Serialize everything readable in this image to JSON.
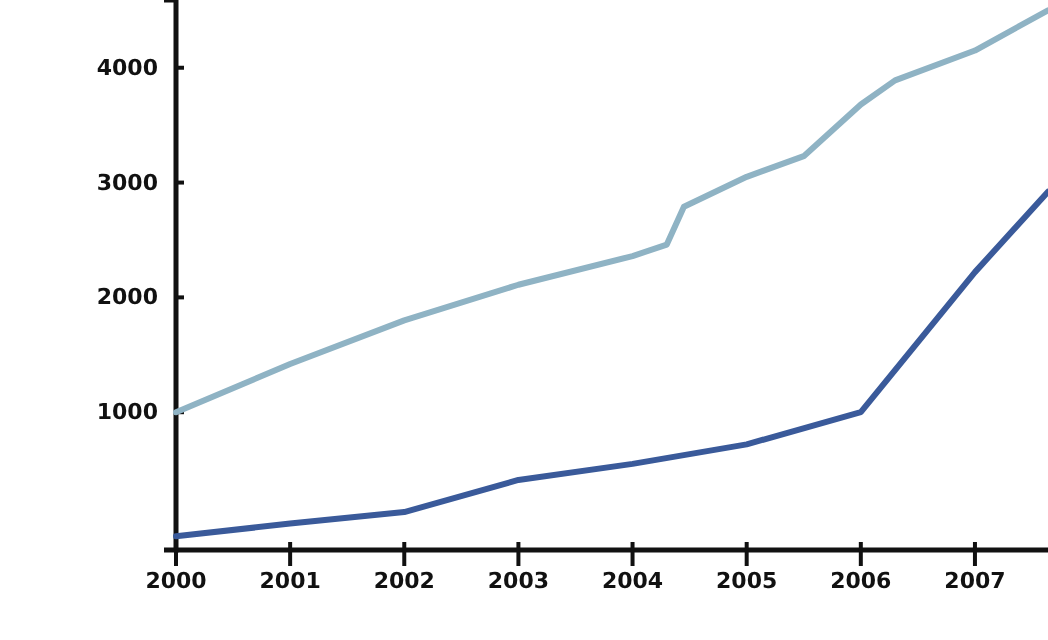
{
  "chart_data": {
    "type": "line",
    "x": [
      2000,
      2001,
      2002,
      2003,
      2004,
      2004.3,
      2004.45,
      2005,
      2005.5,
      2006,
      2006.3,
      2007,
      2007.64
    ],
    "series": [
      {
        "color": "#8fb3c4",
        "values": [
          1000,
          1420,
          1800,
          2110,
          2360,
          2460,
          2790,
          3050,
          3230,
          3680,
          3890,
          4150,
          4500
        ]
      },
      {
        "color": "#3a5a9a",
        "x": [
          2000,
          2001,
          2002,
          2003,
          2004,
          2005,
          2006,
          2007,
          2007.64
        ],
        "values": [
          -80,
          30,
          130,
          410,
          550,
          720,
          1000,
          2220,
          2920
        ]
      }
    ],
    "xlim": [
      2000,
      2007.64
    ],
    "ylim": [
      -200,
      4590
    ],
    "xticks": [
      2000,
      2001,
      2002,
      2003,
      2004,
      2005,
      2006,
      2007
    ],
    "yticks": [
      1000,
      2000,
      3000,
      4000
    ],
    "grid": false,
    "marker": "none",
    "line_style": "solid"
  }
}
